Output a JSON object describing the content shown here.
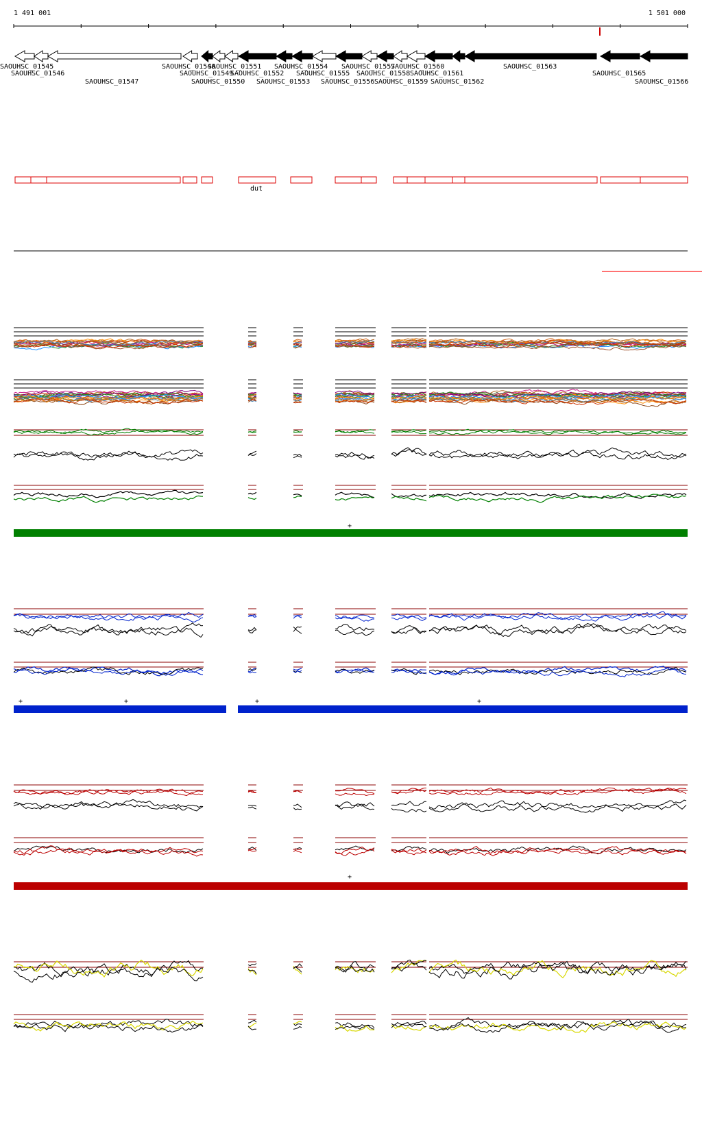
{
  "coordinates": {
    "start": "1 491 001",
    "end": "1 501 000"
  },
  "genes": [
    {
      "id": "SAOUHSC_01545",
      "strand": "-",
      "filled": false
    },
    {
      "id": "SAOUHSC_01546",
      "strand": "-",
      "filled": false
    },
    {
      "id": "SAOUHSC_01547",
      "strand": "-",
      "filled": false
    },
    {
      "id": "SAOUHSC_01548",
      "strand": "-",
      "filled": false
    },
    {
      "id": "SAOUHSC_01549",
      "strand": "-",
      "filled": true
    },
    {
      "id": "SAOUHSC_01550",
      "strand": "-",
      "filled": false
    },
    {
      "id": "SAOUHSC_01551",
      "strand": "-",
      "filled": false
    },
    {
      "id": "SAOUHSC_01552",
      "strand": "-",
      "filled": true
    },
    {
      "id": "SAOUHSC_01553",
      "strand": "-",
      "filled": true
    },
    {
      "id": "SAOUHSC_01554",
      "strand": "-",
      "filled": true
    },
    {
      "id": "SAOUHSC_01555",
      "strand": "-",
      "filled": false
    },
    {
      "id": "SAOUHSC_01556",
      "strand": "-",
      "filled": true
    },
    {
      "id": "SAOUHSC_01557",
      "strand": "-",
      "filled": false
    },
    {
      "id": "SAOUHSC_01558",
      "strand": "-",
      "filled": true
    },
    {
      "id": "SAOUHSC_01559",
      "strand": "-",
      "filled": false
    },
    {
      "id": "SAOUHSC_01560",
      "strand": "-",
      "filled": false
    },
    {
      "id": "SAOUHSC_01561",
      "strand": "-",
      "filled": true
    },
    {
      "id": "SAOUHSC_01562",
      "strand": "-",
      "filled": true
    },
    {
      "id": "SAOUHSC_01563",
      "strand": "-",
      "filled": true
    },
    {
      "id": "SAOUHSC_01565",
      "strand": "-",
      "filled": true
    },
    {
      "id": "SAOUHSC_01566",
      "strand": "-",
      "filled": true
    }
  ],
  "feature_label": "dut",
  "markers": [
    "+",
    "+",
    "+",
    "+",
    "+",
    "+"
  ],
  "colors": {
    "group1": "#008000",
    "group2": "#0022cc",
    "group3": "#bb0000",
    "group4": "#d8d800",
    "feature_outline": "#dd0000",
    "threshold": "#8b0000"
  }
}
